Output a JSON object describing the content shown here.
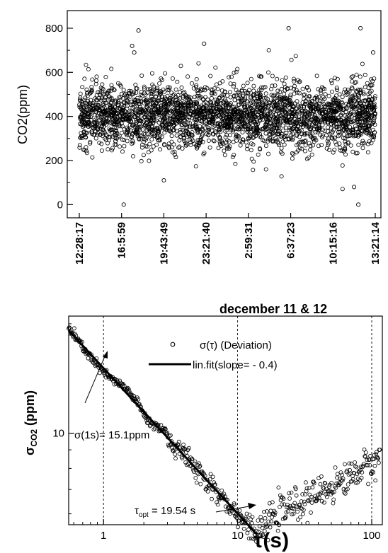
{
  "chart_data": [
    {
      "type": "scatter",
      "title": "",
      "ylabel": "CO2(ppm)",
      "xlabel": "december 11 & 12",
      "ylim": [
        -60,
        880
      ],
      "yticks": [
        0,
        200,
        400,
        600,
        800
      ],
      "x_tick_labels": [
        "12:28:17",
        "16:5:59",
        "19:43:49",
        "23:21:40",
        "2:59:31",
        "6:37:23",
        "10:15:16",
        "13:21:14"
      ],
      "series_description_points": {
        "baseline_ppm": 400,
        "typical_spread_ppm": 100,
        "n_points": 2800,
        "outliers": [
          {
            "x_index": 1.05,
            "y": 0
          },
          {
            "x_index": 1.4,
            "y": 790
          },
          {
            "x_index": 1.25,
            "y": 720
          },
          {
            "x_index": 1.3,
            "y": 690
          },
          {
            "x_index": 2.0,
            "y": 110
          },
          {
            "x_index": 2.95,
            "y": 730
          },
          {
            "x_index": 4.95,
            "y": 800
          },
          {
            "x_index": 6.6,
            "y": 0
          },
          {
            "x_index": 6.65,
            "y": 800
          },
          {
            "x_index": 6.5,
            "y": 80
          },
          {
            "x_index": 6.95,
            "y": 690
          }
        ]
      },
      "marker": "open-circle",
      "grid": false
    },
    {
      "type": "scatter",
      "title": "",
      "ylabel": "σ",
      "ylabel_sub": "CO2",
      "ylabel_suffix": " (ppm)",
      "xlabel": "τ(s)",
      "xscale": "log",
      "yscale": "log",
      "xlim": [
        0.55,
        120
      ],
      "ylim": [
        5.6,
        21
      ],
      "x_tick_labels": [
        "1",
        "10",
        "100"
      ],
      "y_tick_labels": [
        "10"
      ],
      "vertical_dashed_lines_at": [
        1,
        10,
        100
      ],
      "legend": [
        {
          "symbol": "open-circle",
          "label": "σ(τ) (Deviation)"
        },
        {
          "symbol": "line",
          "label": "lin.fit(slope= - 0.4)"
        }
      ],
      "fit_line": {
        "slope": -0.4,
        "x_start": 0.55,
        "x_end": 14,
        "value_at_1s": 15.1
      },
      "deviation_points_description": {
        "min_tau_s": 19.54,
        "min_sigma_ppm": 6.1
      },
      "annotations": [
        {
          "text": "σ(1s)= 15.1ppm"
        },
        {
          "text_main": "τ",
          "text_sub": "opt",
          "text_rest": " = 19.54 s"
        }
      ]
    }
  ]
}
